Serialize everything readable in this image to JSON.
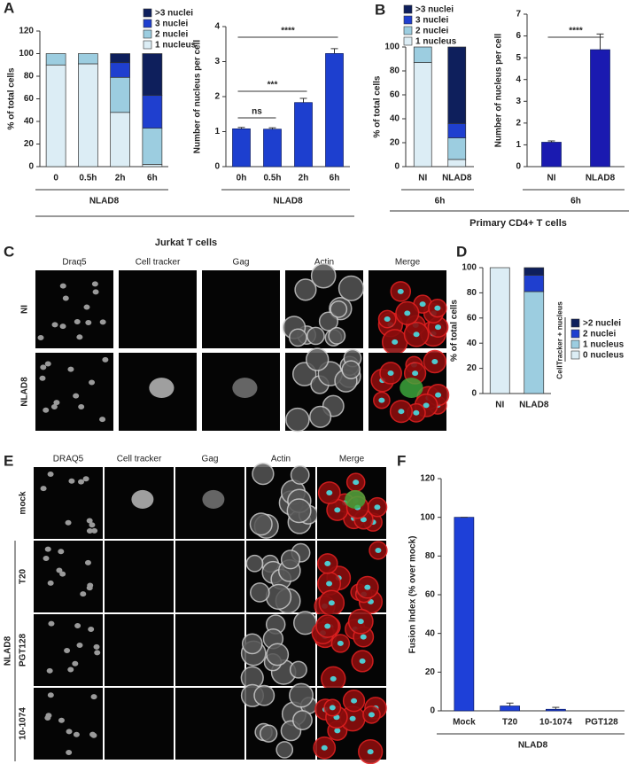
{
  "panel_labels": [
    "A",
    "B",
    "C",
    "D",
    "E",
    "F"
  ],
  "captions": {
    "A": "Jurkat  T cells",
    "B": "Primary CD4+ T cells"
  },
  "chart_data": [
    {
      "type": "bar",
      "stacked": true,
      "ylabel": "% of total cells",
      "categories": [
        "0",
        "0.5h",
        "2h",
        "6h"
      ],
      "series": [
        {
          "name": "1 nucleus",
          "color": "#dcedf5",
          "values": [
            90,
            91,
            48,
            2
          ]
        },
        {
          "name": "2 nuclei",
          "color": "#9ccde0",
          "values": [
            10,
            9,
            31,
            32
          ]
        },
        {
          "name": "3 nuclei",
          "color": "#1f3fcf",
          "values": [
            0,
            0,
            13,
            29
          ]
        },
        {
          "name": ">3 nuclei",
          "color": "#0e1f5c",
          "values": [
            0,
            0,
            8,
            37
          ]
        }
      ],
      "ylim": [
        0,
        120
      ],
      "yticks": [
        0,
        20,
        40,
        60,
        80,
        100,
        120
      ],
      "group_label": "NLAD8"
    },
    {
      "type": "bar",
      "ylabel": "Number of nucleus per cell",
      "categories": [
        "0h",
        "0.5h",
        "2h",
        "6h"
      ],
      "values": [
        1.08,
        1.07,
        1.83,
        3.23
      ],
      "errors": [
        0.04,
        0.04,
        0.12,
        0.14
      ],
      "color": "#1d3fcf",
      "ylim": [
        0,
        4
      ],
      "yticks": [
        0,
        1,
        2,
        3,
        4
      ],
      "annotations": [
        "ns",
        "***",
        "****"
      ],
      "group_label": "NLAD8"
    },
    {
      "type": "bar",
      "stacked": true,
      "ylabel": "% of total cells",
      "categories": [
        "NI",
        "NLAD8"
      ],
      "series": [
        {
          "name": "1 nucleus",
          "color": "#dcedf5",
          "values": [
            87,
            6
          ]
        },
        {
          "name": "2 nuclei",
          "color": "#9ccde0",
          "values": [
            13,
            18
          ]
        },
        {
          "name": "3 nuclei",
          "color": "#1f3fcf",
          "values": [
            0,
            12
          ]
        },
        {
          "name": ">3 nuclei",
          "color": "#0e1f5c",
          "values": [
            0,
            64
          ]
        }
      ],
      "ylim": [
        0,
        100
      ],
      "yticks": [
        0,
        20,
        40,
        60,
        80,
        100
      ],
      "group_label": "6h"
    },
    {
      "type": "bar",
      "ylabel": "Number of nucleus per cell",
      "categories": [
        "NI",
        "NLAD8"
      ],
      "values": [
        1.12,
        5.37
      ],
      "errors": [
        0.06,
        0.72
      ],
      "color": "#1a1ab0",
      "ylim": [
        0,
        7
      ],
      "yticks": [
        0,
        1,
        2,
        3,
        4,
        5,
        6,
        7
      ],
      "annotations": [
        "****"
      ],
      "group_label": "6h"
    },
    {
      "type": "bar",
      "stacked": true,
      "ylabel": "% of total cells",
      "categories": [
        "NI",
        "NLAD8"
      ],
      "legend_title": "CellTracker + nucleus",
      "series": [
        {
          "name": "0 nucleus",
          "color": "#dcedf5",
          "values": [
            100,
            0
          ]
        },
        {
          "name": "1 nucleus",
          "color": "#9ccde0",
          "values": [
            0,
            81
          ]
        },
        {
          "name": "2 nuclei",
          "color": "#1f3fcf",
          "values": [
            0,
            13
          ]
        },
        {
          "name": ">2 nuclei",
          "color": "#0e1f5c",
          "values": [
            0,
            6
          ]
        }
      ],
      "ylim": [
        0,
        100
      ],
      "yticks": [
        0,
        20,
        40,
        60,
        80,
        100
      ]
    },
    {
      "type": "bar",
      "ylabel": "Fusion Index (% over mock)",
      "categories": [
        "Mock",
        "T20",
        "10-1074",
        "PGT128"
      ],
      "values": [
        100,
        2.5,
        0.8,
        0
      ],
      "errors": [
        0,
        1.5,
        1,
        0
      ],
      "color": "#1e40d8",
      "ylim": [
        0,
        120
      ],
      "yticks": [
        0,
        20,
        40,
        60,
        80,
        100,
        120
      ],
      "group_label": "NLAD8"
    }
  ],
  "image_panels": {
    "C": {
      "columns": [
        "Draq5",
        "Cell tracker",
        "Gag",
        "Actin",
        "Merge"
      ],
      "rows": [
        "NI",
        "NLAD8"
      ]
    },
    "E": {
      "columns": [
        "DRAQ5",
        "Cell tracker",
        "Gag",
        "Actin",
        "Merge"
      ],
      "rows": [
        "mock",
        "T20",
        "PGT128",
        "10-1074"
      ],
      "group": "NLAD8"
    }
  }
}
